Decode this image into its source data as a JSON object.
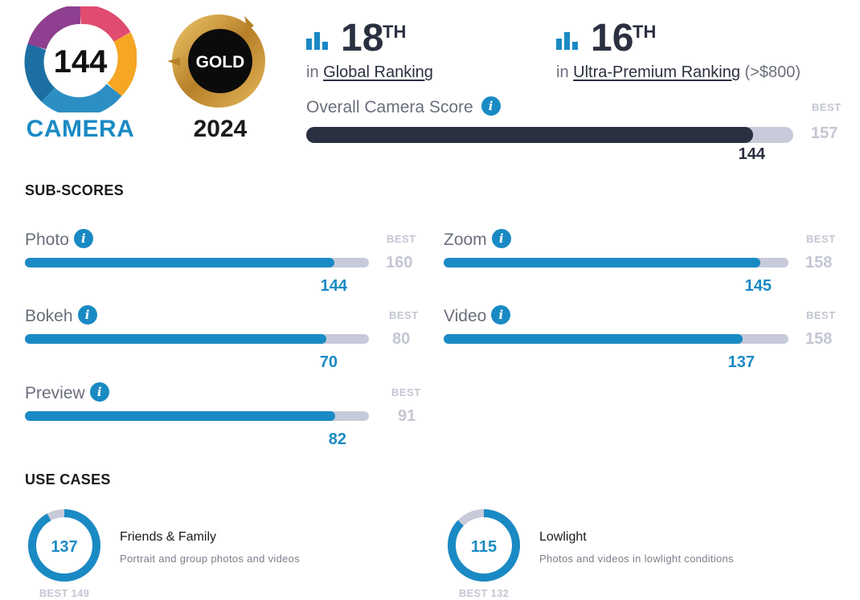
{
  "camera_badge": {
    "score": "144",
    "caption": "CAMERA"
  },
  "label_badge": {
    "label": "GOLD",
    "year": "2024"
  },
  "rankings": {
    "global": {
      "rank": "18",
      "suffix": "TH",
      "prefix": "in",
      "label": "Global Ranking",
      "note": ""
    },
    "segment": {
      "rank": "16",
      "suffix": "TH",
      "prefix": "in",
      "label": "Ultra-Premium Ranking",
      "note": "(>$800)"
    }
  },
  "overall": {
    "label": "Overall Camera Score",
    "best_label": "BEST",
    "best": 157,
    "score": 144
  },
  "sub_scores": {
    "title": "SUB-SCORES",
    "items": [
      {
        "label": "Photo",
        "score": 144,
        "best": 160,
        "best_label": "BEST"
      },
      {
        "label": "Zoom",
        "score": 145,
        "best": 158,
        "best_label": "BEST"
      },
      {
        "label": "Bokeh",
        "score": 70,
        "best": 80,
        "best_label": "BEST"
      },
      {
        "label": "Video",
        "score": 137,
        "best": 158,
        "best_label": "BEST"
      },
      {
        "label": "Preview",
        "score": 82,
        "best": 91,
        "best_label": "BEST"
      }
    ]
  },
  "use_cases": {
    "title": "USE CASES",
    "items": [
      {
        "title": "Friends & Family",
        "desc": "Portrait and group photos and videos",
        "score": 137,
        "best": 149,
        "best_text": "BEST 149"
      },
      {
        "title": "Lowlight",
        "desc": "Photos and videos in lowlight conditions",
        "score": 115,
        "best": 132,
        "best_text": "BEST 132"
      }
    ]
  },
  "colors": {
    "accent": "#1a8ac4",
    "dark": "#2b3040",
    "track": "#c7cad9",
    "muted": "#c3c6d2",
    "gold": "#c9973a"
  }
}
